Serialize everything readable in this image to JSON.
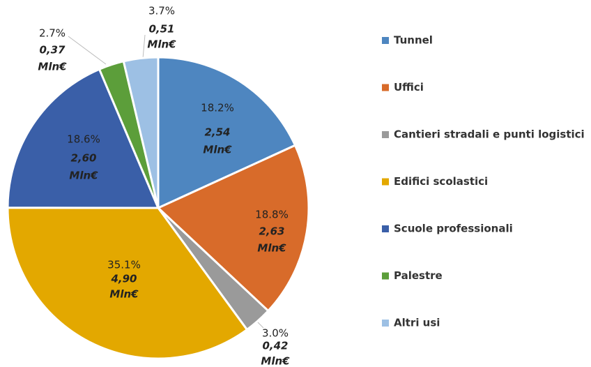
{
  "chart_data": {
    "type": "pie",
    "categories": [
      "Tunnel",
      "Uffici",
      "Cantieri stradali e punti logistici",
      "Edifici scolastici",
      "Scuole professionali",
      "Palestre",
      "Altri usi"
    ],
    "values": [
      18.2,
      18.8,
      3.0,
      35.1,
      18.6,
      2.7,
      3.7
    ],
    "value_labels": [
      "18.2%",
      "18.8%",
      "3.0%",
      "35.1%",
      "18.6%",
      "2.7%",
      "3.7%"
    ],
    "colors": [
      "#4e86c0",
      "#d86b2a",
      "#9a9a9a",
      "#e3a800",
      "#3a5fa8",
      "#5c9e3a",
      "#9dc0e4"
    ],
    "amounts": {
      "values": [
        2.54,
        2.63,
        0.42,
        4.9,
        2.6,
        0.37,
        0.51
      ],
      "value_labels": [
        "2,54",
        "2,63",
        "0,42",
        "4,90",
        "2,60",
        "0,37",
        "0,51"
      ],
      "unit": "Mln€"
    },
    "legend": "right"
  }
}
